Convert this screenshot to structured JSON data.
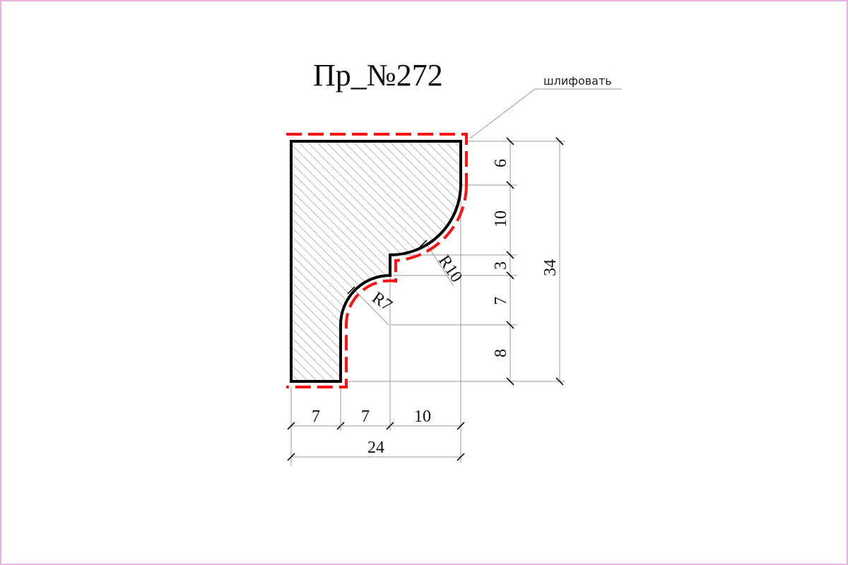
{
  "drawing": {
    "title": "Пр_№272",
    "note": "шлифовать",
    "colors": {
      "border": "#e8b4e8",
      "outline": "#000000",
      "sanding_line": "#ff1111",
      "hatch": "#b8b8b8"
    },
    "dimensions": {
      "horizontal": {
        "part_1": "7",
        "part_2": "7",
        "part_3": "10",
        "total": "24"
      },
      "vertical": {
        "part_1": "6",
        "part_2": "10",
        "part_3": "3",
        "part_4": "7",
        "part_5": "8",
        "total": "34"
      },
      "radii": {
        "large": "R10",
        "small": "R7"
      }
    }
  }
}
